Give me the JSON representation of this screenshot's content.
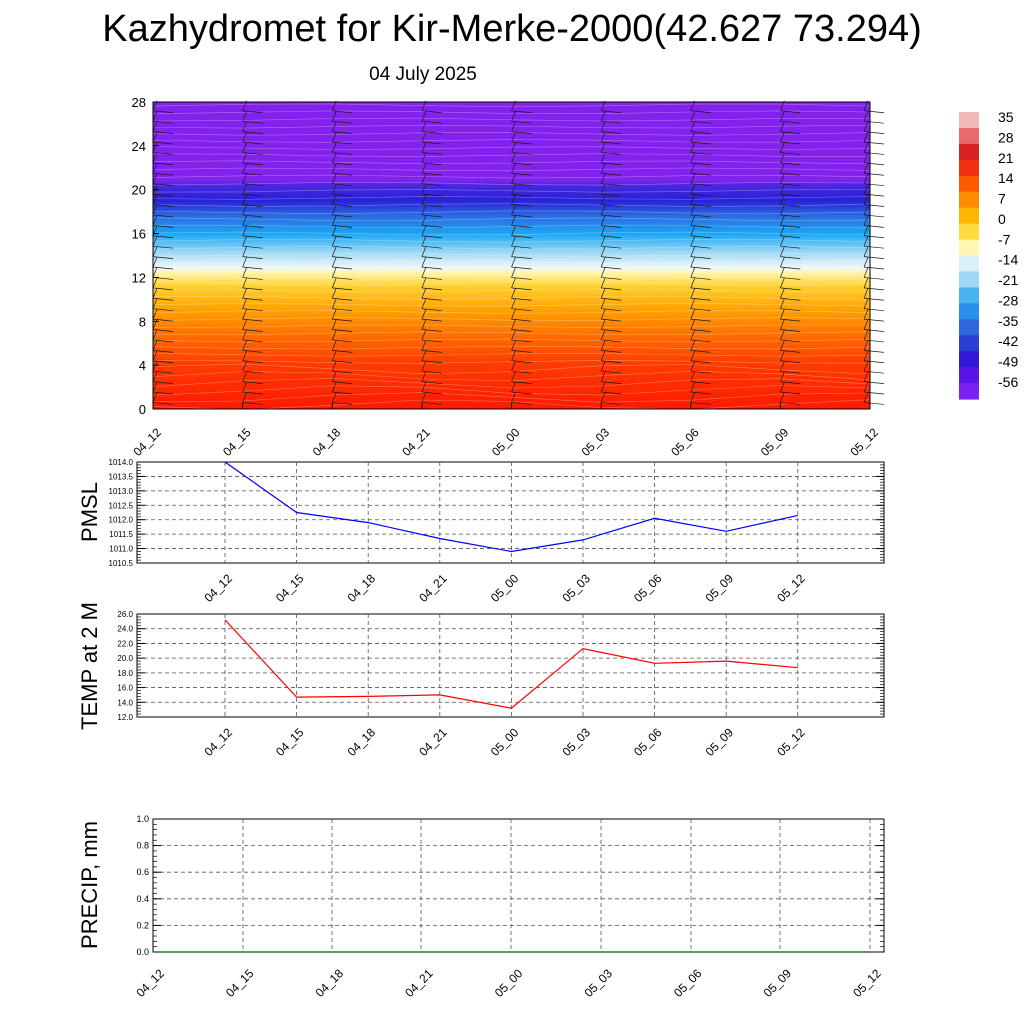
{
  "title": "Kazhydromet for Kir-Merke-2000(42.627 73.294)",
  "date": "04 July 2025",
  "colorbar": {
    "labels": [
      "35",
      "28",
      "21",
      "14",
      "7",
      "0",
      "-7",
      "-14",
      "-21",
      "-28",
      "-35",
      "-42",
      "-49",
      "-56"
    ],
    "colors": [
      "#f0b8b8",
      "#e86a6a",
      "#d92020",
      "#f03010",
      "#ff5a00",
      "#ff8c00",
      "#ffb400",
      "#ffdc3c",
      "#fff7b0",
      "#d8f0f8",
      "#9ed8f4",
      "#4ab4f0",
      "#2890ea",
      "#2c68dc",
      "#2840d4",
      "#3418d8",
      "#5b14e6",
      "#7a22f0"
    ]
  },
  "panels": {
    "vertical": {
      "type": "heatmap",
      "ylim": [
        0,
        28
      ],
      "yticks": [
        "0",
        "4",
        "8",
        "12",
        "16",
        "20",
        "24",
        "28"
      ],
      "xticks": [
        "04_12",
        "04_15",
        "04_18",
        "04_21",
        "05_00",
        "05_03",
        "05_06",
        "05_09",
        "05_12"
      ],
      "bands": [
        {
          "from": 0,
          "to": 12.2,
          "scheme": "warm"
        },
        {
          "from": 12.2,
          "to": 20.8,
          "scheme": "cold"
        },
        {
          "from": 20.8,
          "to": 28,
          "scheme": "purple"
        }
      ],
      "wind_barbs": "shown"
    },
    "pmsl": {
      "ylabel": "PMSL",
      "ylim": [
        1010.5,
        1014.0
      ],
      "yticks": [
        "1010.5",
        "1011.0",
        "1011.5",
        "1012.0",
        "1012.5",
        "1013.0",
        "1013.5",
        "1014.0"
      ],
      "xticks": [
        "04_12",
        "04_15",
        "04_18",
        "04_21",
        "05_00",
        "05_03",
        "05_06",
        "05_09",
        "05_12"
      ],
      "line_color": "#0000ff",
      "values": [
        1014.0,
        1012.25,
        1011.9,
        1011.35,
        1010.9,
        1011.3,
        1012.05,
        1011.6,
        1012.15
      ]
    },
    "temp": {
      "ylabel": "TEMP at 2 M",
      "ylim": [
        12.0,
        26.0
      ],
      "yticks": [
        "12.0",
        "14.0",
        "16.0",
        "18.0",
        "20.0",
        "22.0",
        "24.0",
        "26.0"
      ],
      "xticks": [
        "04_12",
        "04_15",
        "04_18",
        "04_21",
        "05_00",
        "05_03",
        "05_06",
        "05_09",
        "05_12"
      ],
      "line_color": "#ff0000",
      "values": [
        25.2,
        14.7,
        14.8,
        15.0,
        13.2,
        21.3,
        19.3,
        19.6,
        18.7
      ]
    },
    "precip": {
      "ylabel": "PRECIP, mm",
      "ylim": [
        0.0,
        1.0
      ],
      "yticks": [
        "0.0",
        "0.2",
        "0.4",
        "0.6",
        "0.8",
        "1.0"
      ],
      "xticks": [
        "04_12",
        "04_15",
        "04_18",
        "04_21",
        "05_00",
        "05_03",
        "05_06",
        "05_09",
        "05_12"
      ],
      "line_color": "#006400",
      "values": [
        0,
        0,
        0,
        0,
        0,
        0,
        0,
        0,
        0
      ]
    }
  },
  "chart_data": [
    {
      "type": "heatmap",
      "title": "Kazhydromet for Kir-Merke-2000(42.627 73.294)",
      "subtitle": "04 July 2025",
      "x": [
        "04_12",
        "04_15",
        "04_18",
        "04_21",
        "05_00",
        "05_03",
        "05_06",
        "05_09",
        "05_12"
      ],
      "ylim": [
        0,
        28
      ],
      "colorbar_range": [
        -56,
        35
      ]
    },
    {
      "type": "line",
      "ylabel": "PMSL",
      "x": [
        "04_12",
        "04_15",
        "04_18",
        "04_21",
        "05_00",
        "05_03",
        "05_06",
        "05_09",
        "05_12"
      ],
      "values": [
        1014.0,
        1012.25,
        1011.9,
        1011.35,
        1010.9,
        1011.3,
        1012.05,
        1011.6,
        1012.15
      ],
      "ylim": [
        1010.5,
        1014.0
      ]
    },
    {
      "type": "line",
      "ylabel": "TEMP at 2 M",
      "x": [
        "04_12",
        "04_15",
        "04_18",
        "04_21",
        "05_00",
        "05_03",
        "05_06",
        "05_09",
        "05_12"
      ],
      "values": [
        25.2,
        14.7,
        14.8,
        15.0,
        13.2,
        21.3,
        19.3,
        19.6,
        18.7
      ],
      "ylim": [
        12.0,
        26.0
      ]
    },
    {
      "type": "line",
      "ylabel": "PRECIP, mm",
      "x": [
        "04_12",
        "04_15",
        "04_18",
        "04_21",
        "05_00",
        "05_03",
        "05_06",
        "05_09",
        "05_12"
      ],
      "values": [
        0,
        0,
        0,
        0,
        0,
        0,
        0,
        0,
        0
      ],
      "ylim": [
        0.0,
        1.0
      ]
    }
  ]
}
